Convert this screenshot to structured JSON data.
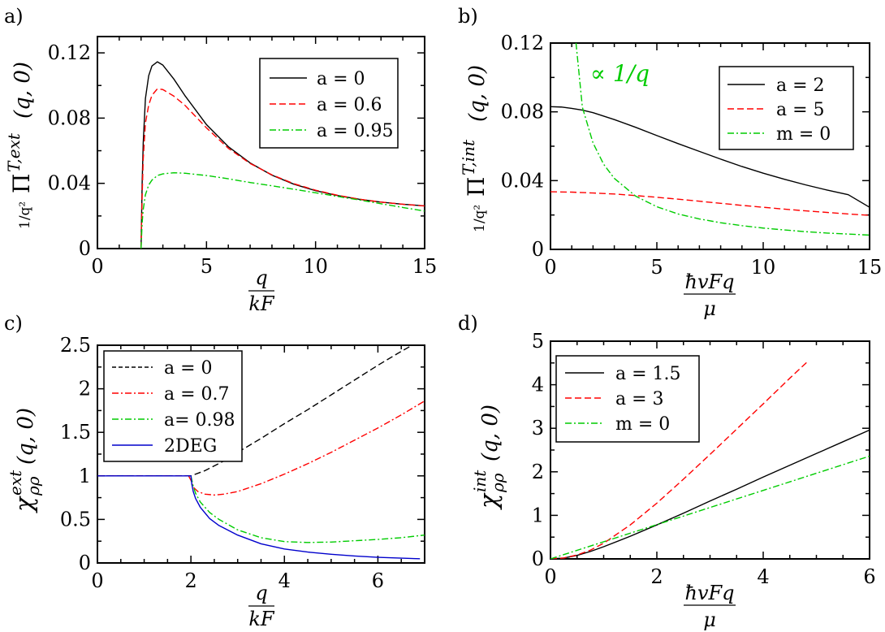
{
  "chart_data": [
    {
      "type": "line",
      "panel": "a)",
      "xlim": [
        0,
        15
      ],
      "ylim": [
        0,
        0.13
      ],
      "xticks": [
        "0",
        "5",
        "10",
        "15"
      ],
      "xtick_values": [
        0,
        5,
        10,
        15
      ],
      "yticks": [
        "0",
        "0.04",
        "0.08",
        "0.12"
      ],
      "ytick_values": [
        0,
        0.04,
        0.08,
        0.12
      ],
      "xlabel": {
        "num": "q",
        "den": "kF"
      },
      "ylabel": {
        "frac": "1/q²",
        "main": "Π",
        "sup": "T,ext",
        "args": "(q, 0)"
      },
      "legend_position": "top-right",
      "series": [
        {
          "name": "a = 0",
          "color": "#000000",
          "dash": "solid",
          "x": [
            2.0,
            2.05,
            2.1,
            2.2,
            2.35,
            2.5,
            2.75,
            3.0,
            3.5,
            4,
            5,
            6,
            7,
            8,
            9,
            10,
            11,
            12,
            13,
            14,
            15
          ],
          "y": [
            0.0,
            0.04,
            0.065,
            0.092,
            0.106,
            0.112,
            0.1145,
            0.1125,
            0.104,
            0.094,
            0.076,
            0.0625,
            0.0525,
            0.045,
            0.0395,
            0.0355,
            0.0325,
            0.0302,
            0.0285,
            0.0272,
            0.0262
          ]
        },
        {
          "name": "a = 0.6",
          "color": "#ff0000",
          "dash": "dash",
          "x": [
            2.0,
            2.05,
            2.1,
            2.2,
            2.35,
            2.5,
            2.75,
            3.0,
            3.5,
            4,
            5,
            6,
            7,
            8,
            9,
            10,
            11,
            12,
            13,
            14,
            15
          ],
          "y": [
            0.0,
            0.032,
            0.055,
            0.077,
            0.088,
            0.094,
            0.098,
            0.0975,
            0.0935,
            0.088,
            0.074,
            0.0615,
            0.0522,
            0.0452,
            0.0398,
            0.0358,
            0.0327,
            0.0303,
            0.0285,
            0.0272,
            0.0261
          ]
        },
        {
          "name": "a = 0.95",
          "color": "#00cc00",
          "dash": "dashdot",
          "x": [
            2.0,
            2.05,
            2.1,
            2.2,
            2.35,
            2.5,
            2.75,
            3.0,
            3.5,
            4,
            5,
            6,
            7,
            8,
            9,
            10,
            11,
            12,
            13,
            14,
            15
          ],
          "y": [
            0.0,
            0.016,
            0.024,
            0.033,
            0.039,
            0.042,
            0.0448,
            0.0458,
            0.0465,
            0.0462,
            0.0448,
            0.0428,
            0.0405,
            0.0385,
            0.0364,
            0.0342,
            0.032,
            0.0298,
            0.0275,
            0.0252,
            0.023
          ]
        }
      ]
    },
    {
      "type": "line",
      "panel": "b)",
      "xlim": [
        0,
        15
      ],
      "ylim": [
        0,
        0.12
      ],
      "xticks": [
        "0",
        "5",
        "10",
        "15"
      ],
      "xtick_values": [
        0,
        5,
        10,
        15
      ],
      "yticks": [
        "0",
        "0.04",
        "0.08",
        "0.12"
      ],
      "ytick_values": [
        0,
        0.04,
        0.08,
        0.12
      ],
      "xlabel": {
        "num": "ħvFq",
        "den": "μ"
      },
      "ylabel": {
        "frac": "1/q²",
        "main": "Π",
        "sup": "T,int",
        "args": "(q, 0)"
      },
      "annotation": "∝ 1/q",
      "annotation_anchor": [
        2.0,
        0.11
      ],
      "legend_position": "top-right",
      "series": [
        {
          "name": "a = 2",
          "color": "#000000",
          "dash": "solid",
          "x": [
            0,
            0.5,
            1,
            1.5,
            2,
            3,
            4,
            5,
            6,
            7,
            8,
            9,
            10,
            11,
            12,
            13,
            14,
            15
          ],
          "y": [
            0.083,
            0.0828,
            0.082,
            0.081,
            0.0795,
            0.0755,
            0.071,
            0.0662,
            0.0615,
            0.057,
            0.0525,
            0.0482,
            0.0443,
            0.0408,
            0.0375,
            0.0345,
            0.0318,
            0.0245
          ]
        },
        {
          "name": "a = 5",
          "color": "#ff0000",
          "dash": "dash",
          "x": [
            0,
            1,
            2,
            3,
            4,
            5,
            6,
            7,
            8,
            9,
            10,
            11,
            12,
            13,
            14,
            15
          ],
          "y": [
            0.0335,
            0.0333,
            0.0328,
            0.0322,
            0.0313,
            0.0303,
            0.0292,
            0.028,
            0.0268,
            0.0256,
            0.0245,
            0.0234,
            0.0224,
            0.0215,
            0.0206,
            0.0198
          ]
        },
        {
          "name": "m = 0",
          "color": "#00cc00",
          "dash": "dashdot",
          "x": [
            1.2,
            1.5,
            2,
            2.5,
            3,
            4,
            5,
            6,
            7,
            8,
            9,
            10,
            11,
            12,
            13,
            14,
            15
          ],
          "y": [
            0.12,
            0.0826,
            0.0619,
            0.0495,
            0.0413,
            0.031,
            0.0248,
            0.0206,
            0.0177,
            0.0155,
            0.0138,
            0.0124,
            0.0113,
            0.0103,
            0.0095,
            0.0089,
            0.0083
          ]
        }
      ]
    },
    {
      "type": "line",
      "panel": "c)",
      "xlim": [
        0,
        7
      ],
      "ylim": [
        0,
        2.5
      ],
      "xticks": [
        "0",
        "2",
        "4",
        "6"
      ],
      "xtick_values": [
        0,
        2,
        4,
        6
      ],
      "yticks": [
        "0",
        "0.5",
        "1",
        "1.5",
        "2",
        "2.5"
      ],
      "ytick_values": [
        0,
        0.5,
        1,
        1.5,
        2,
        2.5
      ],
      "xlabel": {
        "num": "q",
        "den": "kF"
      },
      "ylabel": {
        "main": "χ",
        "sup": "ext",
        "sub": "ρρ",
        "args": "(q, 0)"
      },
      "legend_position": "top-left",
      "series": [
        {
          "name": "a = 0",
          "color": "#000000",
          "dash": "dash",
          "x": [
            0,
            2.0,
            2.3,
            2.7,
            3.0,
            3.5,
            4.0,
            4.5,
            5.0,
            5.5,
            6.0,
            6.5,
            6.8
          ],
          "y": [
            1.0,
            1.0,
            1.06,
            1.17,
            1.27,
            1.43,
            1.6,
            1.76,
            1.93,
            2.1,
            2.27,
            2.43,
            2.52
          ]
        },
        {
          "name": "a = 0.7",
          "color": "#ff0000",
          "dash": "dashdot",
          "x": [
            0,
            1.95,
            2.0,
            2.05,
            2.15,
            2.3,
            2.5,
            2.7,
            3.0,
            3.5,
            4.0,
            4.5,
            5.0,
            5.5,
            6.0,
            6.5,
            7.0
          ],
          "y": [
            1.0,
            1.0,
            0.95,
            0.87,
            0.82,
            0.79,
            0.78,
            0.79,
            0.82,
            0.91,
            1.02,
            1.14,
            1.27,
            1.41,
            1.55,
            1.7,
            1.86
          ]
        },
        {
          "name": "a= 0.98",
          "color": "#00cc00",
          "dash": "dashdot",
          "x": [
            2.0,
            2.05,
            2.1,
            2.2,
            2.4,
            2.6,
            3.0,
            3.5,
            4.0,
            4.5,
            5.0,
            5.5,
            6.0,
            6.5,
            7.0
          ],
          "y": [
            1.0,
            0.88,
            0.8,
            0.7,
            0.58,
            0.5,
            0.38,
            0.29,
            0.245,
            0.235,
            0.24,
            0.255,
            0.27,
            0.29,
            0.32
          ]
        },
        {
          "name": "2DEG",
          "color": "#0000cc",
          "dash": "solid",
          "x": [
            0,
            2.0,
            2.02,
            2.05,
            2.1,
            2.2,
            2.4,
            2.6,
            3.0,
            3.5,
            4.0,
            4.5,
            5.0,
            5.5,
            6.0,
            6.5,
            6.9
          ],
          "y": [
            1.0,
            1.0,
            0.9,
            0.82,
            0.74,
            0.64,
            0.51,
            0.43,
            0.32,
            0.22,
            0.16,
            0.125,
            0.1,
            0.08,
            0.065,
            0.055,
            0.048
          ]
        }
      ]
    },
    {
      "type": "line",
      "panel": "d)",
      "xlim": [
        0,
        6
      ],
      "ylim": [
        0,
        5
      ],
      "xticks": [
        "0",
        "2",
        "4",
        "6"
      ],
      "xtick_values": [
        0,
        2,
        4,
        6
      ],
      "yticks": [
        "0",
        "1",
        "2",
        "3",
        "4",
        "5"
      ],
      "ytick_values": [
        0,
        1,
        2,
        3,
        4,
        5
      ],
      "xlabel": {
        "num": "ħvFq",
        "den": "μ"
      },
      "ylabel": {
        "main": "χ",
        "sup": "int",
        "sub": "ρρ",
        "args": "(q, 0)"
      },
      "legend_position": "top-left",
      "series": [
        {
          "name": "a = 1.5",
          "color": "#000000",
          "dash": "solid",
          "x": [
            0,
            0.25,
            0.5,
            0.75,
            1.0,
            1.5,
            2.0,
            2.5,
            3.0,
            3.5,
            4.0,
            4.5,
            5.0,
            5.5,
            6.0
          ],
          "y": [
            0,
            0.02,
            0.08,
            0.17,
            0.28,
            0.52,
            0.78,
            1.05,
            1.33,
            1.6,
            1.88,
            2.15,
            2.42,
            2.69,
            2.96
          ]
        },
        {
          "name": "a = 3",
          "color": "#ff0000",
          "dash": "dash",
          "x": [
            0,
            0.25,
            0.5,
            0.75,
            1.0,
            1.5,
            2.0,
            2.5,
            3.0,
            3.5,
            4.0,
            4.5,
            4.85
          ],
          "y": [
            0,
            0.02,
            0.09,
            0.2,
            0.36,
            0.78,
            1.28,
            1.83,
            2.4,
            2.98,
            3.56,
            4.15,
            4.55
          ]
        },
        {
          "name": "m = 0",
          "color": "#00cc00",
          "dash": "dashdot",
          "x": [
            0,
            6
          ],
          "y": [
            0,
            2.36
          ]
        }
      ]
    }
  ]
}
